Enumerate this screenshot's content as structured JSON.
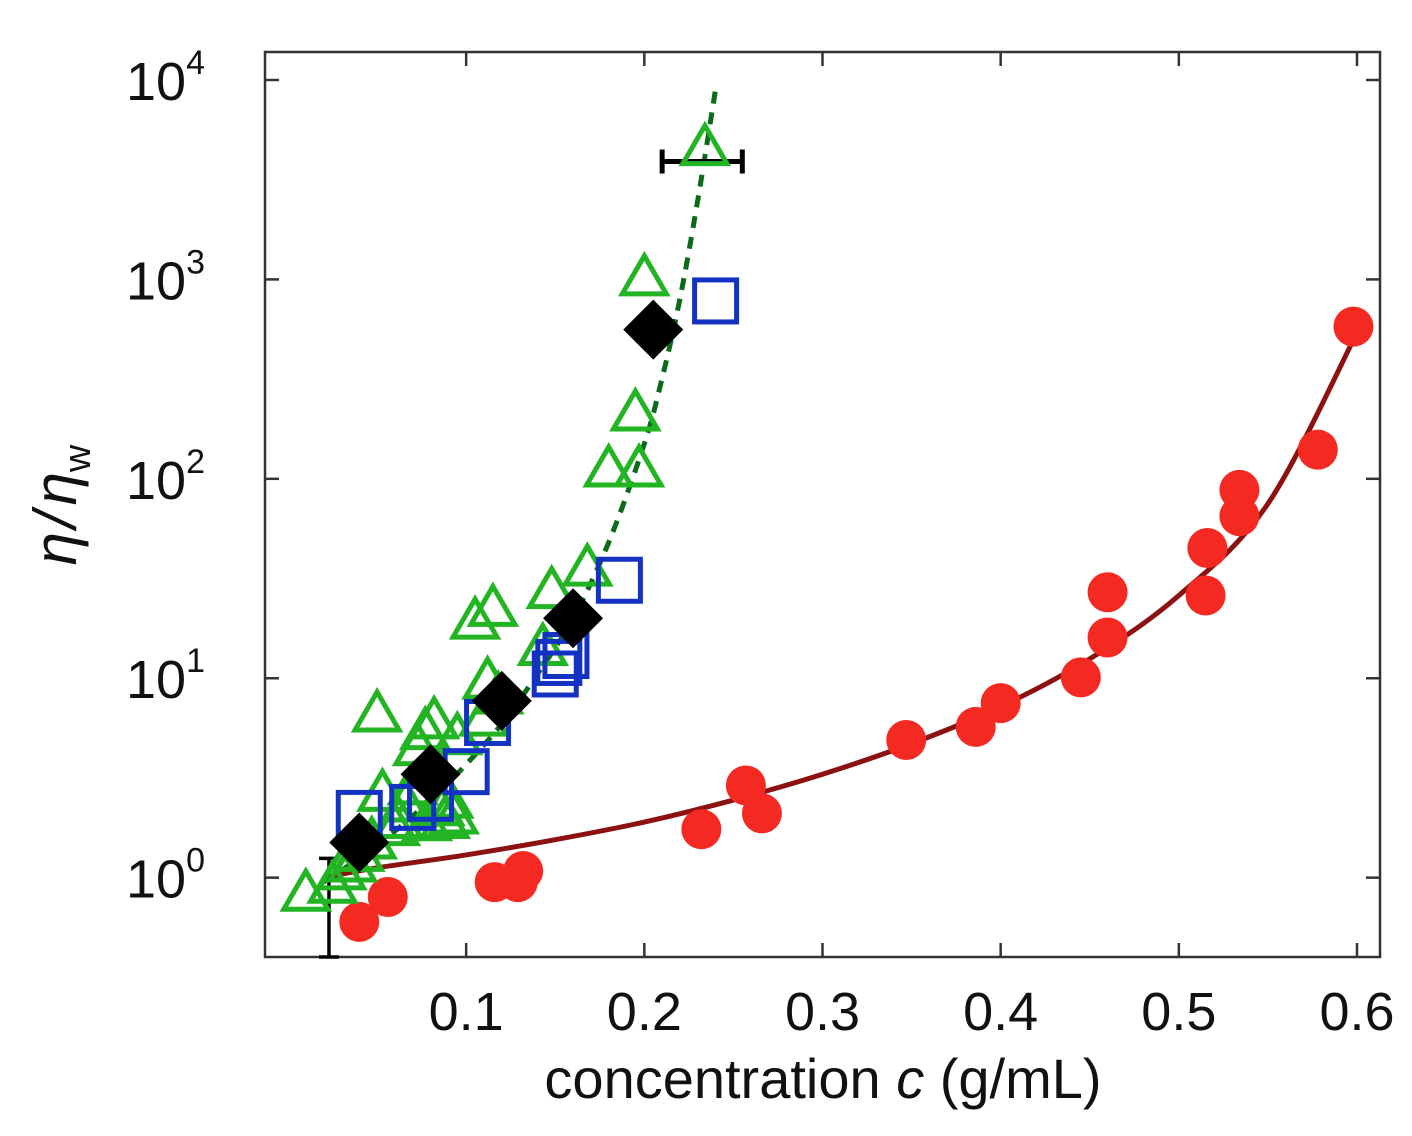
{
  "chart_data": {
    "type": "scatter",
    "x_axis": {
      "label_prefix": "concentration ",
      "label_var": "c",
      "label_suffix": " (g/mL)",
      "range": [
        0.0,
        0.6
      ],
      "ticks": [
        {
          "value": 0.1,
          "label": "0.1"
        },
        {
          "value": 0.2,
          "label": "0.2"
        },
        {
          "value": 0.3,
          "label": "0.3"
        },
        {
          "value": 0.4,
          "label": "0.4"
        },
        {
          "value": 0.5,
          "label": "0.5"
        },
        {
          "value": 0.6,
          "label": "0.6"
        }
      ]
    },
    "y_axis": {
      "label_num": "η",
      "label_slash": "/",
      "label_den": "η",
      "label_den_sub": "w",
      "scale": "log",
      "range": [
        0.4,
        10000
      ],
      "ticks": [
        {
          "value": 1,
          "base": "10",
          "exp": "0"
        },
        {
          "value": 10,
          "base": "10",
          "exp": "1"
        },
        {
          "value": 100,
          "base": "10",
          "exp": "2"
        },
        {
          "value": 1000,
          "base": "10",
          "exp": "3"
        },
        {
          "value": 10000,
          "base": "10",
          "exp": "4"
        }
      ]
    },
    "series": [
      {
        "name": "red circles",
        "marker": "circle",
        "color": "#f42a22",
        "points": [
          [
            0.04,
            0.6
          ],
          [
            0.056,
            0.8
          ],
          [
            0.116,
            0.95
          ],
          [
            0.129,
            0.95
          ],
          [
            0.132,
            1.08
          ],
          [
            0.232,
            1.75
          ],
          [
            0.257,
            2.9
          ],
          [
            0.266,
            2.1
          ],
          [
            0.347,
            4.9
          ],
          [
            0.386,
            5.7
          ],
          [
            0.4,
            7.5
          ],
          [
            0.445,
            10.1
          ],
          [
            0.46,
            16
          ],
          [
            0.46,
            27
          ],
          [
            0.515,
            26
          ],
          [
            0.516,
            45
          ],
          [
            0.534,
            65
          ],
          [
            0.534,
            88
          ],
          [
            0.578,
            140
          ],
          [
            0.598,
            580
          ]
        ]
      },
      {
        "name": "green triangles",
        "marker": "triangle",
        "color": "#22b422",
        "points": [
          [
            0.01,
            0.82
          ],
          [
            0.025,
            0.9
          ],
          [
            0.03,
            1.05
          ],
          [
            0.036,
            1.15
          ],
          [
            0.04,
            1.3
          ],
          [
            0.047,
            1.5
          ],
          [
            0.05,
            6.5
          ],
          [
            0.053,
            2.6
          ],
          [
            0.06,
            1.75
          ],
          [
            0.062,
            1.9
          ],
          [
            0.066,
            2.3
          ],
          [
            0.07,
            2.8
          ],
          [
            0.073,
            4.4
          ],
          [
            0.077,
            5.3
          ],
          [
            0.078,
            1.85
          ],
          [
            0.082,
            6.0
          ],
          [
            0.085,
            2.2
          ],
          [
            0.088,
            1.9
          ],
          [
            0.09,
            2.4
          ],
          [
            0.093,
            2.0
          ],
          [
            0.095,
            5.0
          ],
          [
            0.105,
            19
          ],
          [
            0.11,
            6.2
          ],
          [
            0.112,
            9.5
          ],
          [
            0.115,
            22
          ],
          [
            0.118,
            8.0
          ],
          [
            0.143,
            14
          ],
          [
            0.148,
            27
          ],
          [
            0.168,
            35
          ],
          [
            0.18,
            110
          ],
          [
            0.195,
            210
          ],
          [
            0.197,
            110
          ],
          [
            0.2,
            1000
          ],
          [
            0.234,
            4500
          ]
        ]
      },
      {
        "name": "blue squares",
        "marker": "square",
        "color": "#1332c4",
        "points": [
          [
            0.04,
            2.1
          ],
          [
            0.07,
            2.25
          ],
          [
            0.08,
            2.5
          ],
          [
            0.1,
            3.4
          ],
          [
            0.112,
            6.0
          ],
          [
            0.15,
            10.5
          ],
          [
            0.152,
            12
          ],
          [
            0.156,
            13
          ],
          [
            0.186,
            31
          ],
          [
            0.24,
            780
          ]
        ]
      },
      {
        "name": "black diamonds",
        "marker": "diamond",
        "color": "#000000",
        "points": [
          [
            0.04,
            1.5
          ],
          [
            0.08,
            3.3
          ],
          [
            0.12,
            7.7
          ],
          [
            0.16,
            20
          ],
          [
            0.205,
            560
          ]
        ]
      }
    ],
    "fits": [
      {
        "name": "red solid fit",
        "style": "solid",
        "color": "#8c1111",
        "points": [
          [
            0.02,
            1.0
          ],
          [
            0.05,
            1.12
          ],
          [
            0.1,
            1.3
          ],
          [
            0.15,
            1.55
          ],
          [
            0.2,
            1.9
          ],
          [
            0.25,
            2.45
          ],
          [
            0.3,
            3.3
          ],
          [
            0.35,
            4.7
          ],
          [
            0.4,
            7.2
          ],
          [
            0.45,
            12.5
          ],
          [
            0.5,
            26
          ],
          [
            0.55,
            75
          ],
          [
            0.6,
            540
          ]
        ]
      },
      {
        "name": "green dashed fit",
        "style": "dashed",
        "color": "#0b6b1b",
        "points": [
          [
            0.02,
            0.95
          ],
          [
            0.05,
            1.45
          ],
          [
            0.08,
            2.45
          ],
          [
            0.1,
            3.7
          ],
          [
            0.12,
            5.9
          ],
          [
            0.14,
            10.5
          ],
          [
            0.16,
            20
          ],
          [
            0.18,
            48
          ],
          [
            0.2,
            150
          ],
          [
            0.21,
            320
          ],
          [
            0.22,
            800
          ],
          [
            0.23,
            2500
          ],
          [
            0.24,
            9000
          ]
        ]
      }
    ],
    "error_bars": [
      {
        "orientation": "vertical",
        "x": 0.023,
        "y_low": 0.4,
        "y_high": 1.25
      },
      {
        "orientation": "horizontal",
        "y": 3900,
        "x_low": 0.21,
        "x_high": 0.255
      }
    ]
  }
}
